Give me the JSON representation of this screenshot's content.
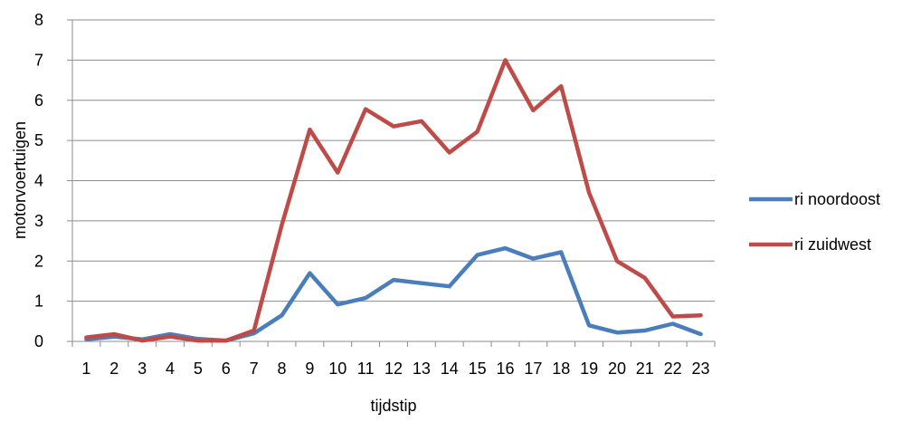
{
  "chart_data": {
    "type": "line",
    "xlabel": "tijdstip",
    "ylabel": "motorvoertuigen",
    "ylim": [
      0,
      8
    ],
    "yticks": [
      0,
      1,
      2,
      3,
      4,
      5,
      6,
      7,
      8
    ],
    "grid": true,
    "legend_position": "right",
    "categories": [
      "1",
      "2",
      "3",
      "4",
      "5",
      "6",
      "7",
      "8",
      "9",
      "10",
      "11",
      "12",
      "13",
      "14",
      "15",
      "16",
      "17",
      "18",
      "19",
      "20",
      "21",
      "22",
      "23"
    ],
    "series": [
      {
        "name": "ri noordoost",
        "color": "#4a7ebb",
        "values": [
          0.05,
          0.12,
          0.05,
          0.18,
          0.06,
          0.02,
          0.2,
          0.65,
          1.7,
          0.92,
          1.08,
          1.53,
          1.45,
          1.37,
          2.15,
          2.32,
          2.06,
          2.22,
          0.4,
          0.22,
          0.27,
          0.44,
          0.18
        ]
      },
      {
        "name": "ri zuidwest",
        "color": "#be4b48",
        "values": [
          0.1,
          0.18,
          0.02,
          0.12,
          0.02,
          0.02,
          0.27,
          2.9,
          5.27,
          4.2,
          5.78,
          5.35,
          5.48,
          4.7,
          5.22,
          7.0,
          5.75,
          6.35,
          3.7,
          2.0,
          1.58,
          0.62,
          0.65
        ]
      }
    ]
  }
}
